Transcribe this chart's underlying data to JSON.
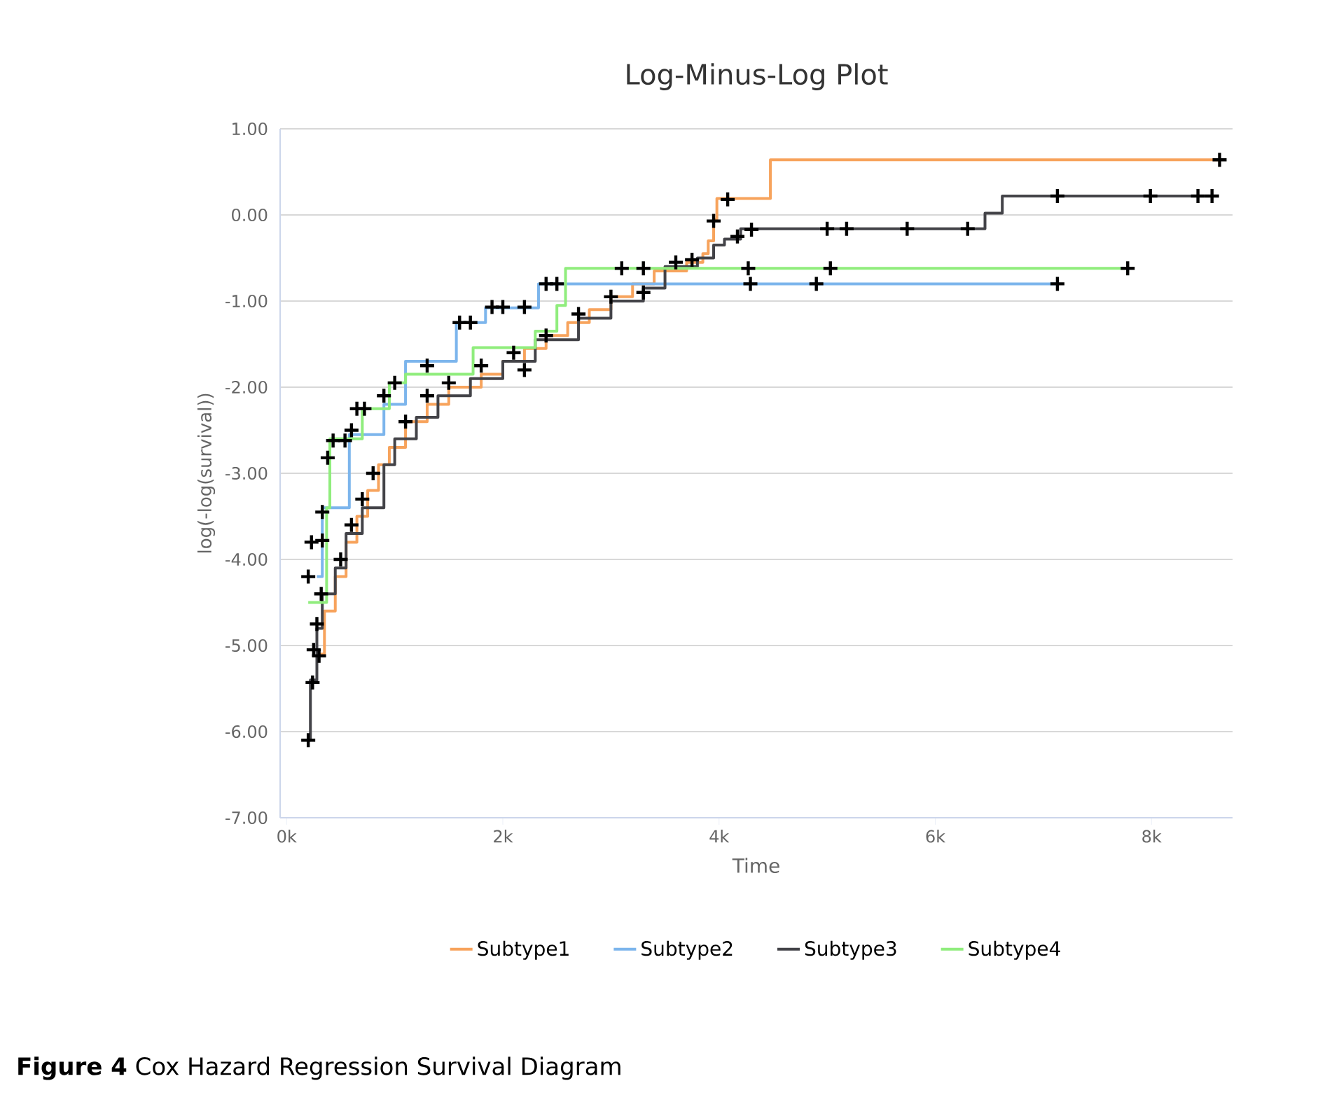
{
  "chart_data": {
    "type": "step",
    "title": "Log-Minus-Log Plot",
    "xlabel": "Time",
    "ylabel": "log(-log(survival))",
    "annotations": [
      "**Figure 4** Cox Hazard Regression Survival Diagram"
    ],
    "xlim": [
      -60,
      8750
    ],
    "ylim": [
      -7,
      1
    ],
    "xticks": [
      {
        "value": 0,
        "label": "0k"
      },
      {
        "value": 2000,
        "label": "2k"
      },
      {
        "value": 4000,
        "label": "4k"
      },
      {
        "value": 6000,
        "label": "6k"
      },
      {
        "value": 8000,
        "label": "8k"
      }
    ],
    "yticks": [
      {
        "value": 1,
        "label": "1.00"
      },
      {
        "value": 0,
        "label": "0.00"
      },
      {
        "value": -1,
        "label": "-1.00"
      },
      {
        "value": -2,
        "label": "-2.00"
      },
      {
        "value": -3,
        "label": "-3.00"
      },
      {
        "value": -4,
        "label": "-4.00"
      },
      {
        "value": -5,
        "label": "-5.00"
      },
      {
        "value": -6,
        "label": "-6.00"
      },
      {
        "value": -7,
        "label": "-7.00"
      }
    ],
    "grid": "y",
    "legend": "bottom",
    "line_style": "solid",
    "series": [
      {
        "name": "Subtype1",
        "color": "#f7a35c",
        "x": [
          300,
          350,
          450,
          550,
          650,
          750,
          850,
          950,
          1100,
          1300,
          1500,
          1800,
          2000,
          2200,
          2400,
          2600,
          2800,
          3000,
          3200,
          3400,
          3700,
          3850,
          3900,
          3950,
          3980,
          4475,
          8630
        ],
        "values": [
          -5.1,
          -4.6,
          -4.2,
          -3.8,
          -3.5,
          -3.2,
          -2.9,
          -2.7,
          -2.4,
          -2.2,
          -2.0,
          -1.85,
          -1.7,
          -1.55,
          -1.4,
          -1.25,
          -1.1,
          -0.95,
          -0.8,
          -0.65,
          -0.55,
          -0.45,
          -0.3,
          -0.05,
          0.19,
          0.64,
          0.64
        ]
      },
      {
        "name": "Subtype2",
        "color": "#7cb5ec",
        "x": [
          280,
          330,
          580,
          900,
          1100,
          1570,
          1840,
          2330,
          7130
        ],
        "values": [
          -4.2,
          -3.4,
          -2.55,
          -2.2,
          -1.7,
          -1.25,
          -1.08,
          -0.8,
          -0.8
        ]
      },
      {
        "name": "Subtype3",
        "color": "#434348",
        "x": [
          200,
          220,
          280,
          330,
          450,
          550,
          700,
          900,
          1000,
          1200,
          1400,
          1700,
          2000,
          2300,
          2700,
          3000,
          3300,
          3500,
          3800,
          3950,
          4050,
          4200,
          6460,
          6620,
          8560
        ],
        "values": [
          -6.1,
          -5.4,
          -4.8,
          -4.4,
          -4.1,
          -3.7,
          -3.4,
          -2.9,
          -2.6,
          -2.35,
          -2.1,
          -1.9,
          -1.7,
          -1.45,
          -1.2,
          -1.0,
          -0.85,
          -0.6,
          -0.5,
          -0.35,
          -0.28,
          -0.16,
          0.02,
          0.22,
          0.22
        ]
      },
      {
        "name": "Subtype4",
        "color": "#90ed7d",
        "x": [
          200,
          370,
          400,
          700,
          950,
          1100,
          1725,
          2300,
          2500,
          2580,
          7780
        ],
        "values": [
          -4.5,
          -3.4,
          -2.6,
          -2.25,
          -1.95,
          -1.85,
          -1.54,
          -1.35,
          -1.05,
          -0.62,
          -0.62
        ]
      },
      {
        "type": "scatter",
        "color": "#000000",
        "marker": "cross",
        "x": [
          8630,
          4080,
          3950,
          4170,
          4300,
          5000,
          5180,
          5740,
          6300,
          7130,
          7990,
          8430,
          8560,
          4270,
          5030,
          7780,
          4290,
          4900,
          7130,
          200,
          240,
          250,
          300,
          280,
          200,
          320,
          330,
          230,
          330,
          380,
          430,
          540,
          650,
          720,
          600,
          900,
          1000,
          1300,
          1600,
          1700,
          1900,
          2000,
          2200,
          2400,
          2500,
          3100,
          3300,
          600,
          700,
          500,
          800,
          1100,
          1300,
          1500,
          1800,
          2100,
          2200,
          2400,
          2700,
          3000,
          3300,
          3600,
          3750
        ],
        "values": [
          0.64,
          0.18,
          -0.07,
          -0.25,
          -0.17,
          -0.16,
          -0.16,
          -0.16,
          -0.16,
          0.22,
          0.22,
          0.22,
          0.22,
          -0.62,
          -0.62,
          -0.62,
          -0.8,
          -0.8,
          -0.8,
          -6.1,
          -5.43,
          -5.05,
          -5.12,
          -4.75,
          -4.2,
          -4.4,
          -3.45,
          -3.8,
          -3.78,
          -2.82,
          -2.62,
          -2.62,
          -2.25,
          -2.25,
          -2.5,
          -2.1,
          -1.95,
          -1.75,
          -1.25,
          -1.25,
          -1.07,
          -1.07,
          -1.07,
          -0.8,
          -0.8,
          -0.62,
          -0.62,
          -3.6,
          -3.3,
          -4.0,
          -3.0,
          -2.4,
          -2.1,
          -1.95,
          -1.75,
          -1.6,
          -1.8,
          -1.4,
          -1.15,
          -0.95,
          -0.9,
          -0.55,
          -0.52
        ]
      }
    ]
  }
}
